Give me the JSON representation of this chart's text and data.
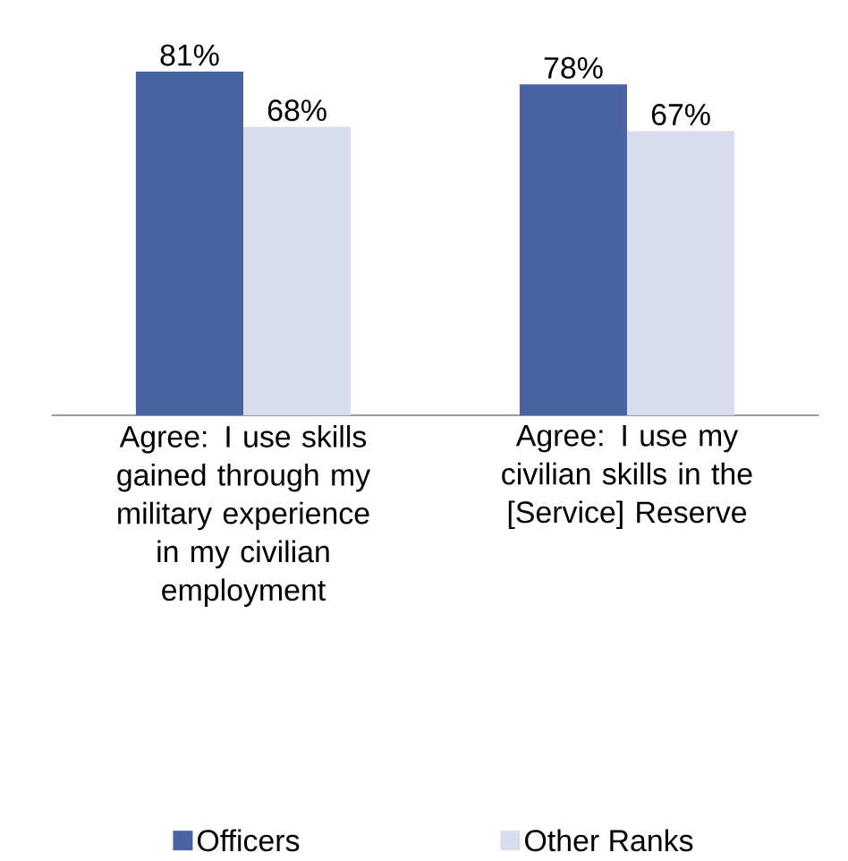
{
  "chart_data": {
    "type": "bar",
    "categories": [
      "Agree: I use skills gained through my military experience in my civilian employment",
      "Agree: I use my civilian skills in the [Service] Reserve"
    ],
    "series": [
      {
        "name": "Officers",
        "color": "#4a63a3",
        "values": [
          81,
          78
        ],
        "value_labels": [
          "81%",
          "78%"
        ]
      },
      {
        "name": "Other Ranks",
        "color": "#d9dcef",
        "values": [
          68,
          67
        ],
        "value_labels": [
          "68%",
          "67%"
        ]
      }
    ],
    "tick_labels": "x",
    "grid": false,
    "legend": "bottom"
  }
}
